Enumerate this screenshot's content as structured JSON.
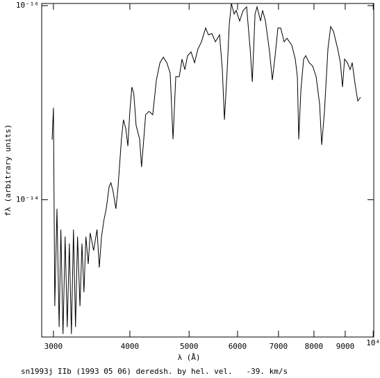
{
  "chart_data": {
    "type": "line",
    "xlabel": "λ (Å)",
    "ylabel": "fλ (arbitrary units)",
    "annotation": "sn1993j IIb (1993 05 06) deredsh. by hel. vel.   -39. km/s",
    "xscale": "log",
    "yscale": "log",
    "xlim": [
      2870,
      10020
    ],
    "ylim": [
      2.6e-13,
      9.5e-17
    ],
    "xticks": [
      3000,
      4000,
      5000,
      6000,
      7000,
      8000,
      9000,
      {
        "value": 10000,
        "label": "10⁴"
      }
    ],
    "yticks": [
      {
        "value": 1e-16,
        "label": "10⁻¹⁶"
      },
      {
        "value": 1e-14,
        "label": "10⁻¹⁴"
      }
    ],
    "color": "#000000",
    "x": [
      2985,
      3000,
      3015,
      3040,
      3065,
      3085,
      3110,
      3135,
      3160,
      3185,
      3210,
      3235,
      3260,
      3285,
      3315,
      3340,
      3365,
      3390,
      3420,
      3445,
      3490,
      3535,
      3565,
      3595,
      3630,
      3660,
      3700,
      3725,
      3755,
      3795,
      3825,
      3875,
      3905,
      3940,
      3970,
      4000,
      4030,
      4060,
      4095,
      4150,
      4180,
      4215,
      4245,
      4300,
      4360,
      4420,
      4480,
      4537,
      4597,
      4656,
      4706,
      4755,
      4818,
      4868,
      4920,
      4971,
      5037,
      5103,
      5170,
      5238,
      5321,
      5377,
      5448,
      5520,
      5607,
      5666,
      5711,
      5771,
      5816,
      5862,
      5923,
      5970,
      6048,
      6128,
      6209,
      6291,
      6343,
      6409,
      6457,
      6543,
      6594,
      6664,
      6769,
      6840,
      6912,
      6985,
      7058,
      7151,
      7226,
      7360,
      7457,
      7516,
      7555,
      7615,
      7695,
      7756,
      7858,
      7962,
      8066,
      8173,
      8237,
      8323,
      8433,
      8520,
      8610,
      8747,
      8838,
      8908,
      8978,
      9073,
      9168,
      9240,
      9337,
      9435,
      9535
    ],
    "values": [
      2.4e-15,
      1.13e-15,
      1.25e-13,
      1.24e-14,
      2.05e-13,
      2.03e-14,
      2.42e-13,
      2.4e-14,
      2.05e-13,
      2.83e-14,
      2.42e-13,
      2.03e-14,
      2.05e-13,
      2.4e-14,
      1.25e-13,
      2.83e-14,
      9e-14,
      2.4e-14,
      4.6e-14,
      2.2e-14,
      3.34e-14,
      2.03e-14,
      5e-14,
      2.4e-14,
      1.59e-14,
      1.24e-14,
      7.3e-15,
      6.7e-15,
      8.2e-15,
      1.24e-14,
      7.6e-15,
      2.38e-15,
      1.5e-15,
      1.86e-15,
      2.8e-15,
      1.23e-15,
      6.9e-16,
      8.1e-16,
      1.71e-15,
      2.38e-15,
      4.6e-15,
      2.38e-15,
      1.33e-15,
      1.23e-15,
      1.33e-15,
      5.85e-16,
      3.87e-16,
      3.4e-16,
      3.87e-16,
      4.96e-16,
      2.38e-15,
      5.4e-16,
      5.4e-16,
      3.56e-16,
      4.56e-16,
      3.28e-16,
      3e-16,
      3.87e-16,
      2.78e-16,
      2.36e-16,
      1.7e-16,
      2e-16,
      1.94e-16,
      2.36e-16,
      2e-16,
      4.56e-16,
      1.5e-15,
      4.56e-16,
      1.56e-16,
      9.5e-17,
      1.22e-16,
      1.12e-16,
      1.44e-16,
      1.12e-16,
      1.03e-16,
      2.78e-16,
      6.1e-16,
      1.22e-16,
      1.03e-16,
      1.44e-16,
      1.12e-16,
      1.44e-16,
      3e-16,
      5.85e-16,
      3.28e-16,
      1.7e-16,
      1.7e-16,
      2.36e-16,
      2.17e-16,
      2.56e-16,
      3.56e-16,
      5.4e-16,
      2.38e-15,
      7.5e-16,
      3.56e-16,
      3.28e-16,
      3.87e-16,
      4.2e-16,
      5.4e-16,
      1.04e-15,
      2.72e-15,
      1.23e-15,
      2.78e-16,
      1.64e-16,
      1.84e-16,
      2.78e-16,
      3.87e-16,
      6.9e-16,
      3.56e-16,
      3.87e-16,
      4.56e-16,
      3.87e-16,
      6.35e-16,
      9.6e-16,
      8.8e-16
    ]
  }
}
